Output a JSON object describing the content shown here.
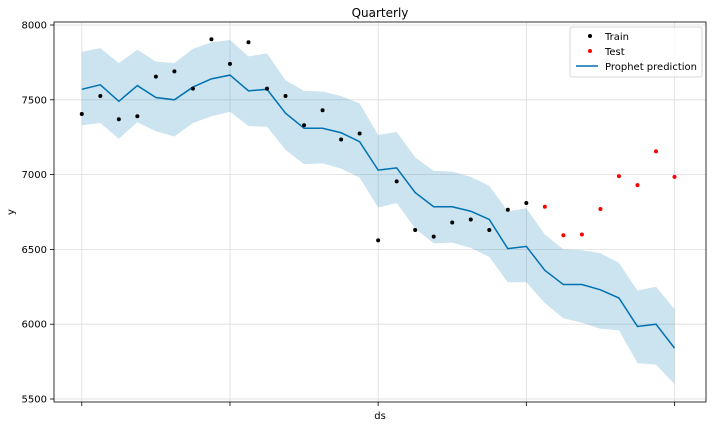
{
  "chart_data": {
    "type": "line",
    "title": "Quarterly",
    "xlabel": "ds",
    "ylabel": "y",
    "ylim": [
      5480,
      8020
    ],
    "yticks": [
      5500,
      6000,
      6500,
      7000,
      7500,
      8000
    ],
    "xticks_index": [
      0,
      8,
      16,
      24,
      32
    ],
    "xlim_index": [
      -1.5,
      33.7
    ],
    "grid": true,
    "legend_placement": "top-right",
    "series": [
      {
        "name": "Train",
        "kind": "scatter",
        "color": "#000000",
        "x_index": [
          0,
          1,
          2,
          3,
          4,
          5,
          6,
          7,
          8,
          9,
          10,
          11,
          12,
          13,
          14,
          15,
          16,
          17,
          18,
          19,
          20,
          21,
          22,
          23,
          24
        ],
        "values": [
          7405,
          7525,
          7370,
          7390,
          7655,
          7690,
          7575,
          7905,
          7740,
          7885,
          7575,
          7525,
          7330,
          7430,
          7235,
          7275,
          6560,
          6955,
          6630,
          6585,
          6680,
          6700,
          6630,
          6765,
          6810
        ]
      },
      {
        "name": "Test",
        "kind": "scatter",
        "color": "#ff0000",
        "x_index": [
          25,
          26,
          27,
          28,
          29,
          30,
          31,
          32
        ],
        "values": [
          6785,
          6595,
          6600,
          6770,
          6990,
          6930,
          7155,
          6985
        ]
      },
      {
        "name": "Prophet prediction",
        "kind": "line",
        "color": "#0072B2",
        "x_index": [
          0,
          1,
          2,
          3,
          4,
          5,
          6,
          7,
          8,
          9,
          10,
          11,
          12,
          13,
          14,
          15,
          16,
          17,
          18,
          19,
          20,
          21,
          22,
          23,
          24,
          25,
          26,
          27,
          28,
          29,
          30,
          31,
          32
        ],
        "values": [
          7570,
          7600,
          7490,
          7595,
          7515,
          7500,
          7585,
          7640,
          7665,
          7560,
          7570,
          7410,
          7310,
          7310,
          7280,
          7220,
          7030,
          7045,
          6880,
          6785,
          6785,
          6755,
          6700,
          6505,
          6520,
          6360,
          6265,
          6265,
          6230,
          6175,
          5985,
          6000,
          5840
        ],
        "band_lower": [
          7330,
          7345,
          7240,
          7350,
          7290,
          7255,
          7345,
          7390,
          7420,
          7325,
          7320,
          7165,
          7070,
          7075,
          7040,
          6980,
          6780,
          6810,
          6640,
          6540,
          6545,
          6510,
          6450,
          6280,
          6280,
          6140,
          6040,
          6010,
          5970,
          5960,
          5740,
          5730,
          5600
        ],
        "band_upper": [
          7820,
          7845,
          7745,
          7835,
          7755,
          7745,
          7840,
          7885,
          7900,
          7790,
          7810,
          7630,
          7560,
          7555,
          7525,
          7475,
          7265,
          7285,
          7115,
          7025,
          7020,
          6985,
          6925,
          6755,
          6775,
          6600,
          6500,
          6495,
          6475,
          6410,
          6225,
          6250,
          6100
        ]
      }
    ]
  }
}
